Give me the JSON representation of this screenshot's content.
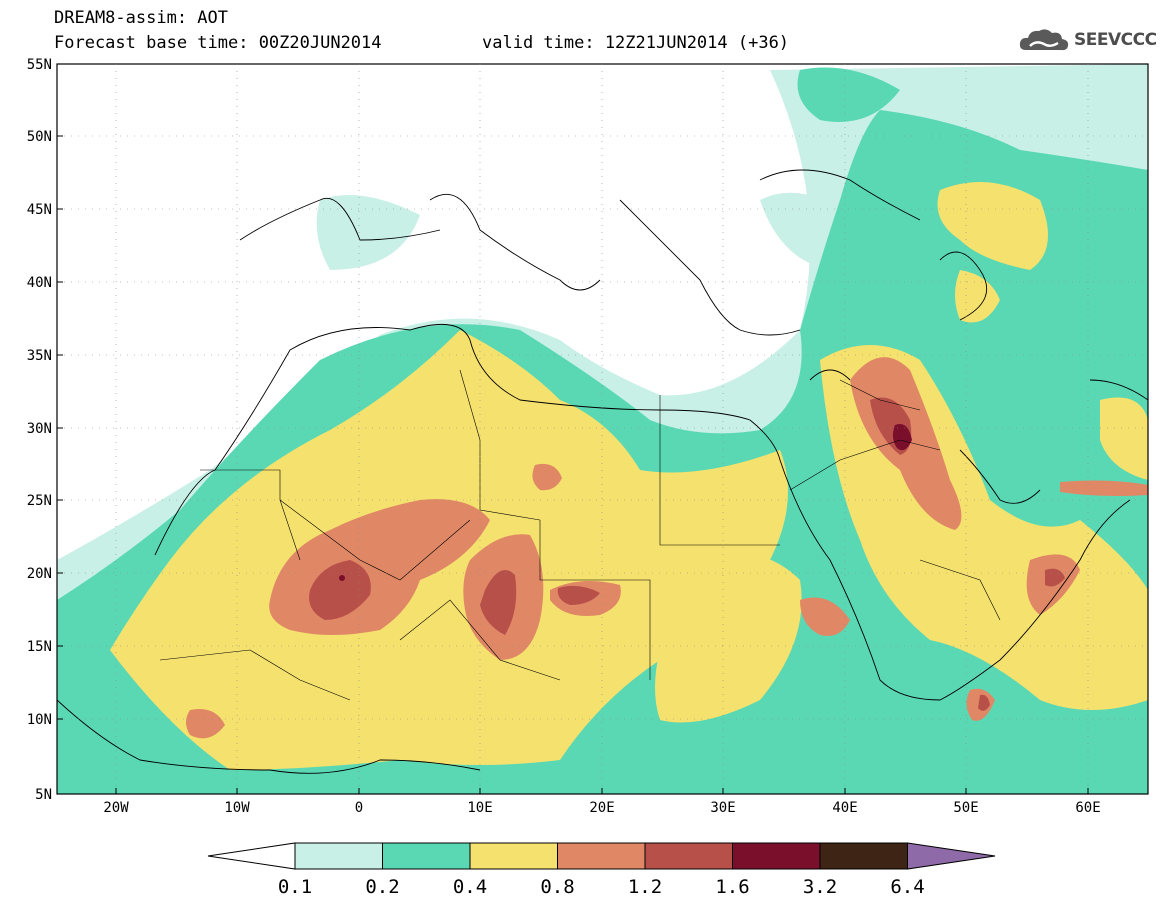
{
  "header": {
    "title": "DREAM8-assim: AOT",
    "base_time": "Forecast base time: 00Z20JUN2014",
    "valid_time": "valid time: 12Z21JUN2014 (+36)",
    "logo_text": "SEEVCCC"
  },
  "axes": {
    "lat_labels": [
      "55N",
      "50N",
      "45N",
      "40N",
      "35N",
      "30N",
      "25N",
      "20N",
      "15N",
      "10N",
      "5N"
    ],
    "lon_labels": [
      "20W",
      "10W",
      "0",
      "10E",
      "20E",
      "30E",
      "40E",
      "50E",
      "60E"
    ]
  },
  "colorbar": {
    "labels": [
      "0.1",
      "0.2",
      "0.4",
      "0.8",
      "1.2",
      "1.6",
      "3.2",
      "6.4"
    ],
    "colors": [
      "#c8f0e6",
      "#5ad8b4",
      "#f5e16e",
      "#e08866",
      "#b8504a",
      "#7a0f2c",
      "#3d2414",
      "#8e6aa8"
    ]
  }
}
